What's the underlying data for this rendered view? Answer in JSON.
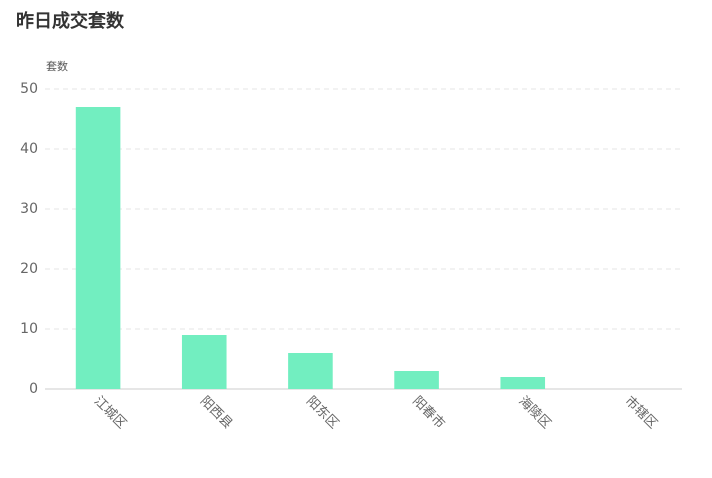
{
  "chart_data": {
    "type": "bar",
    "title": "昨日成交套数",
    "y_label": "套数",
    "categories": [
      "江城区",
      "阳西县",
      "阳东区",
      "阳春市",
      "海陵区",
      "市辖区"
    ],
    "values": [
      47,
      9,
      6,
      3,
      2,
      0
    ],
    "color": "#72eec0",
    "ylim": [
      0,
      50
    ],
    "yticks": [
      0,
      10,
      20,
      30,
      40,
      50
    ],
    "grid": true
  }
}
